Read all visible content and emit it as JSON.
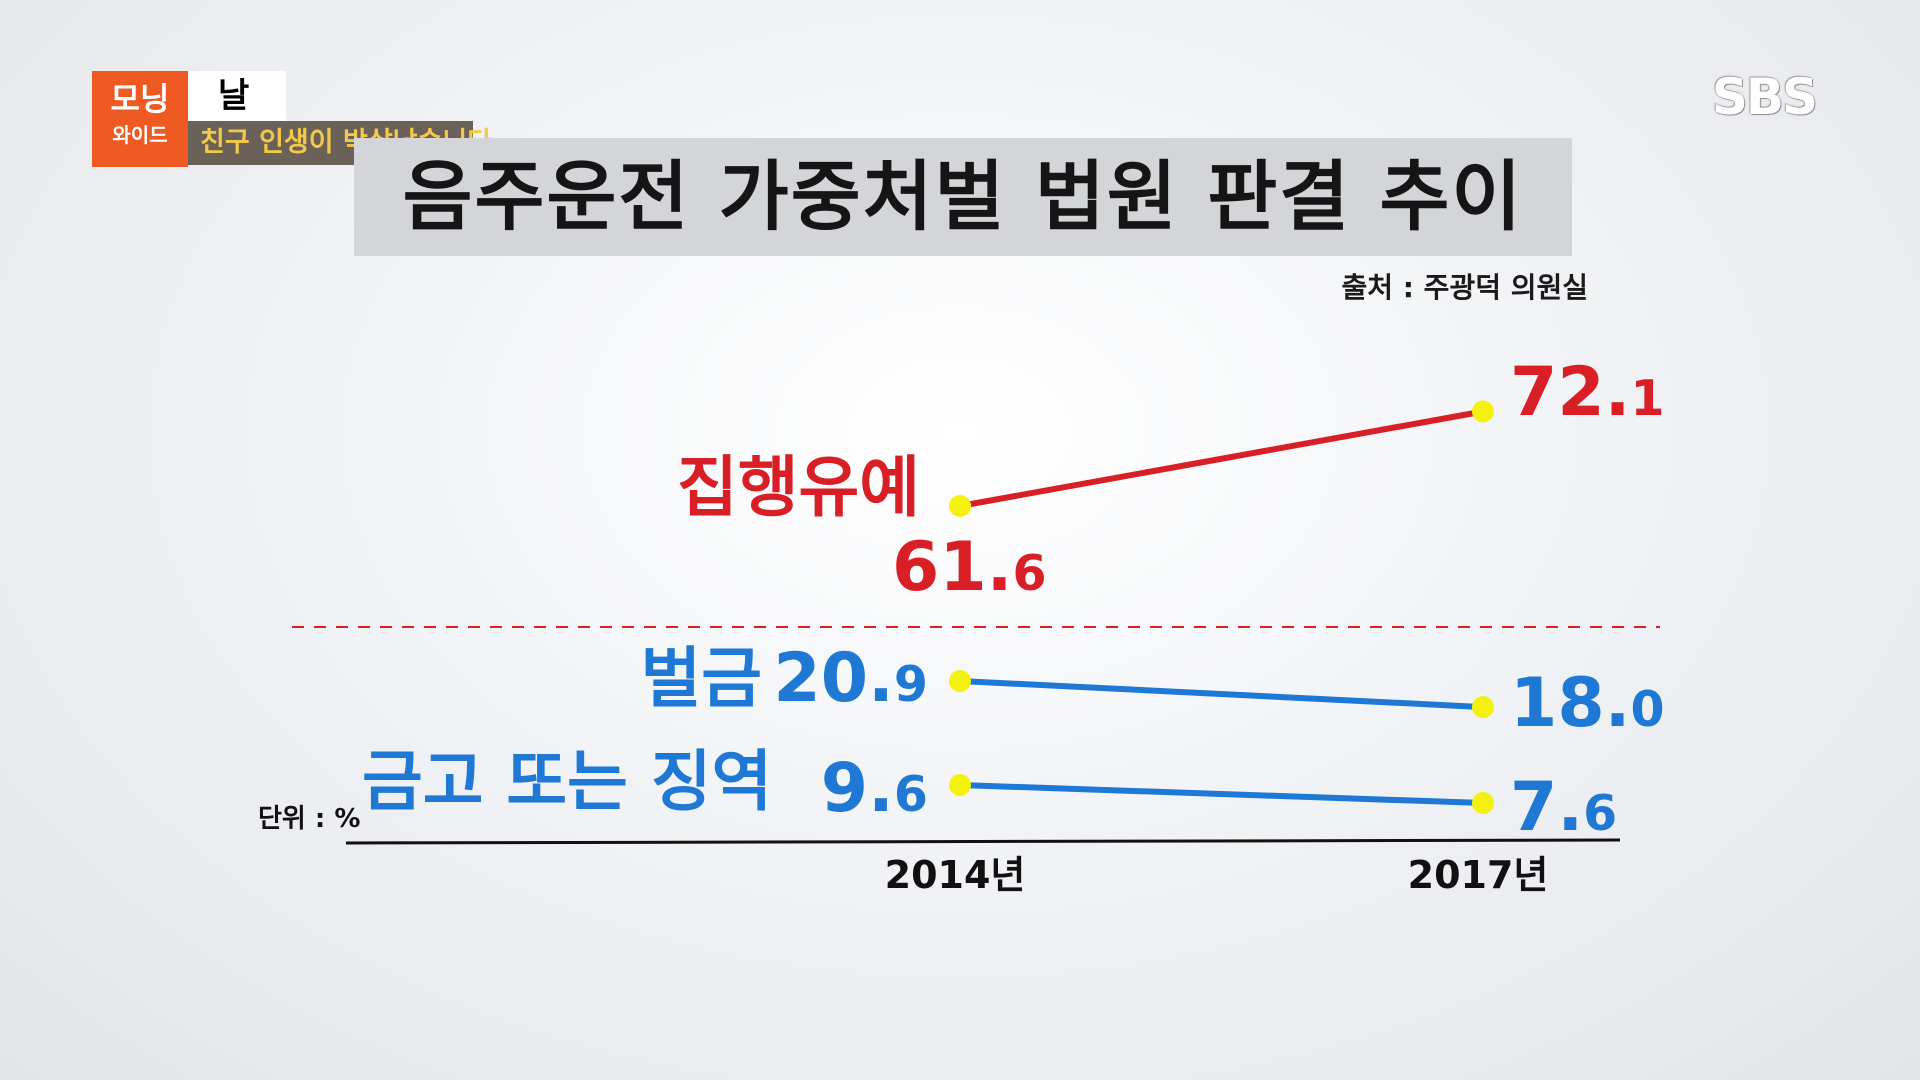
{
  "show": {
    "logo_top": "모닝",
    "logo_bottom": "와이드",
    "logo_white": "날",
    "logo_subtitle": "친구 인생이 박살났습니다"
  },
  "broadcaster": "SBS",
  "colors": {
    "red_series": "#d91f26",
    "blue_series": "#1e78d4",
    "marker": "#f4f10f",
    "logo_orange": "#ee5a21"
  },
  "chart_data": {
    "type": "line",
    "title": "음주운전 가중처벌 법원 판결 추이",
    "source": "출처 : 주광덕 의원실",
    "unit_label": "단위 : %",
    "categories": [
      "2014년",
      "2017년"
    ],
    "series": [
      {
        "name": "집행유예",
        "values": [
          61.6,
          72.1
        ],
        "value_labels": [
          [
            "61.",
            "6"
          ],
          [
            "72.",
            "1"
          ]
        ],
        "color": "red"
      },
      {
        "name": "벌금",
        "values": [
          20.9,
          18.0
        ],
        "value_labels": [
          [
            "20.",
            "9"
          ],
          [
            "18.",
            "0"
          ]
        ],
        "color": "blue"
      },
      {
        "name": "금고 또는 징역",
        "values": [
          9.6,
          7.6
        ],
        "value_labels": [
          [
            "9.",
            "6"
          ],
          [
            "7.",
            "6"
          ]
        ],
        "color": "blue"
      }
    ],
    "separator": "dashed-red",
    "grid": false
  }
}
